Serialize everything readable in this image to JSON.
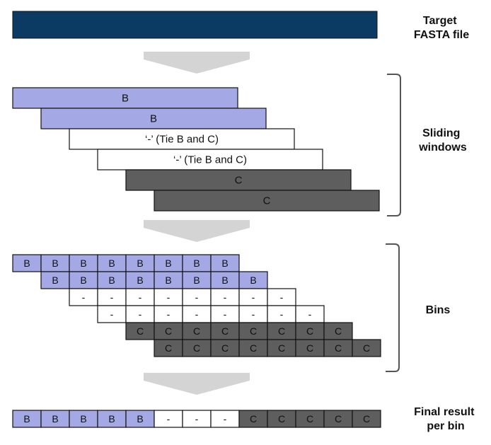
{
  "colors": {
    "target": "#0b3a63",
    "B": "#a4a9e6",
    "tie": "#ffffff",
    "C": "#5e5e5e",
    "arrow": "#d4d4d4",
    "text_dark": "#111111",
    "text_light": "#111111"
  },
  "labels": {
    "target_line1": "Target",
    "target_line2": "FASTA file",
    "sliding_line1": "Sliding",
    "sliding_line2": "windows",
    "bins": "Bins",
    "final_line1": "Final result",
    "final_line2": "per bin"
  },
  "windows": [
    {
      "label": "B",
      "type": "B"
    },
    {
      "label": "B",
      "type": "B"
    },
    {
      "label": "‘-’ (Tie B and C)",
      "type": "tie"
    },
    {
      "label": "‘-’ (Tie B and C)",
      "type": "tie"
    },
    {
      "label": "C",
      "type": "C"
    },
    {
      "label": "C",
      "type": "C"
    }
  ],
  "bin_rows": [
    {
      "offset": 0,
      "type": "B",
      "cells": [
        "B",
        "B",
        "B",
        "B",
        "B",
        "B",
        "B",
        "B"
      ]
    },
    {
      "offset": 1,
      "type": "B",
      "cells": [
        "B",
        "B",
        "B",
        "B",
        "B",
        "B",
        "B",
        "B"
      ]
    },
    {
      "offset": 2,
      "type": "tie",
      "cells": [
        "-",
        "-",
        "-",
        "-",
        "-",
        "-",
        "-",
        "-"
      ]
    },
    {
      "offset": 3,
      "type": "tie",
      "cells": [
        "-",
        "-",
        "-",
        "-",
        "-",
        "-",
        "-",
        "-"
      ]
    },
    {
      "offset": 4,
      "type": "C",
      "cells": [
        "C",
        "C",
        "C",
        "C",
        "C",
        "C",
        "C",
        "C"
      ]
    },
    {
      "offset": 5,
      "type": "C",
      "cells": [
        "C",
        "C",
        "C",
        "C",
        "C",
        "C",
        "C",
        "C"
      ]
    }
  ],
  "final_bins": [
    {
      "label": "B",
      "type": "B"
    },
    {
      "label": "B",
      "type": "B"
    },
    {
      "label": "B",
      "type": "B"
    },
    {
      "label": "B",
      "type": "B"
    },
    {
      "label": "B",
      "type": "B"
    },
    {
      "label": "-",
      "type": "tie"
    },
    {
      "label": "-",
      "type": "tie"
    },
    {
      "label": "-",
      "type": "tie"
    },
    {
      "label": "C",
      "type": "C"
    },
    {
      "label": "C",
      "type": "C"
    },
    {
      "label": "C",
      "type": "C"
    },
    {
      "label": "C",
      "type": "C"
    },
    {
      "label": "C",
      "type": "C"
    }
  ]
}
